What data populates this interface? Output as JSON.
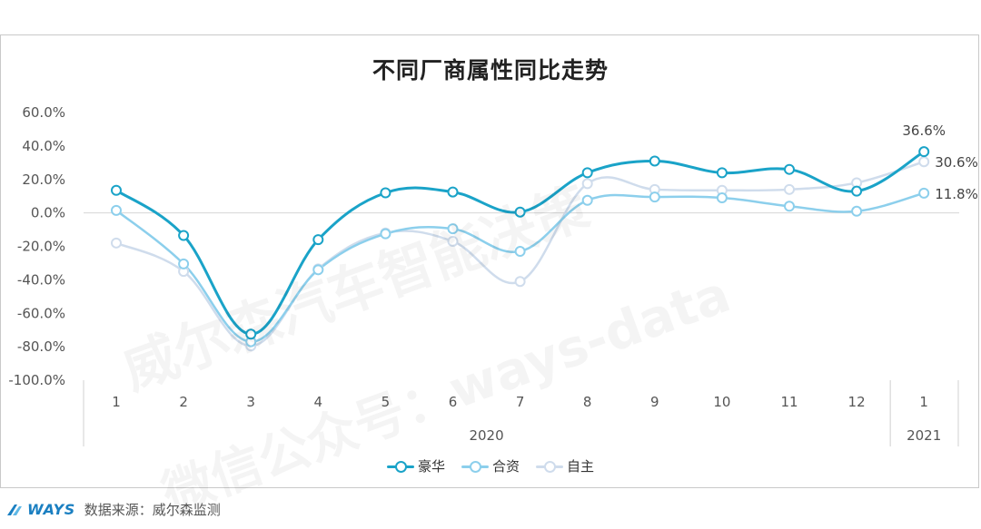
{
  "chart_data": {
    "type": "line",
    "title": "不同厂商属性同比走势",
    "categories": [
      "1",
      "2",
      "3",
      "4",
      "5",
      "6",
      "7",
      "8",
      "9",
      "10",
      "11",
      "12",
      "1"
    ],
    "year_groups": [
      {
        "label": "2020",
        "count": 12
      },
      {
        "label": "2021",
        "count": 1
      }
    ],
    "ylim": [
      -100,
      60
    ],
    "yticks": [
      60,
      40,
      20,
      0,
      -20,
      -40,
      -60,
      -80,
      -100
    ],
    "ytick_labels": [
      "60.0%",
      "40.0%",
      "20.0%",
      "0.0%",
      "-20.0%",
      "-40.0%",
      "-60.0%",
      "-80.0%",
      "-100.0%"
    ],
    "series": [
      {
        "name": "豪华",
        "color": "#1aa3c8",
        "width": 3,
        "values": [
          13.5,
          -13.5,
          -72.5,
          -16,
          12,
          12.5,
          0.5,
          24,
          31,
          24,
          26,
          13,
          36.6
        ]
      },
      {
        "name": "合资",
        "color": "#8ccfec",
        "width": 2.5,
        "values": [
          1.5,
          -30.5,
          -77,
          -34,
          -12.5,
          -9.5,
          -23,
          7.5,
          9.5,
          9,
          4,
          1,
          11.8
        ]
      },
      {
        "name": "自主",
        "color": "#cfdcec",
        "width": 2.5,
        "values": [
          -18,
          -35,
          -79.5,
          -33.5,
          -12,
          -17,
          -41,
          17.5,
          14,
          13.5,
          14,
          18,
          30.6
        ]
      }
    ],
    "end_labels": [
      {
        "series": "豪华",
        "text": "36.6%"
      },
      {
        "series": "自主",
        "text": "30.6%"
      },
      {
        "series": "合资",
        "text": "11.8%"
      }
    ],
    "legend_position": "bottom",
    "grid": false
  },
  "legend": [
    {
      "label": "豪华",
      "color": "#1aa3c8"
    },
    {
      "label": "合资",
      "color": "#8ccfec"
    },
    {
      "label": "自主",
      "color": "#cfdcec"
    }
  ],
  "watermark": {
    "line1": "威尔森汽车智能决策",
    "line2": "微信公众号：ways-data"
  },
  "footer": {
    "logo_text": "WAYS",
    "source": "数据来源：威尔森监测"
  }
}
